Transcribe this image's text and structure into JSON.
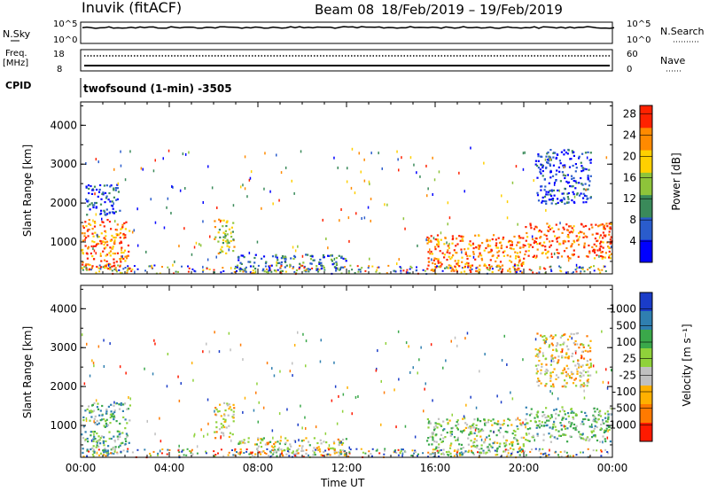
{
  "header": {
    "station": "Inuvik (fitACF)",
    "beam": "Beam 08",
    "date_range": "18/Feb/2019 – 19/Feb/2019"
  },
  "top_panels": {
    "nsky_label": "N.Sky",
    "nsky_tick_top": "10^5",
    "nsky_tick_bottom": "10^0",
    "nsearch_label": "N.Search",
    "nsearch_tick_top": "10^5",
    "nsearch_tick_bottom": "10^0",
    "freq_label": "Freq.",
    "freq_unit": "[MHz]",
    "freq_tick_top": "18",
    "freq_tick_bottom": "8",
    "nave_label": "Nave",
    "nave_tick_top": "60",
    "nave_tick_bottom": "0",
    "cpid_label": "CPID",
    "cpid_text": "twofsound (1-min) -3505"
  },
  "chart_data": [
    {
      "type": "heatmap",
      "name": "power",
      "ylabel": "Slant Range [km]",
      "yticks": [
        "1000",
        "2000",
        "3000",
        "4000"
      ],
      "ylim": [
        180,
        4600
      ],
      "xlim": [
        0,
        24
      ],
      "colorbar_label": "Power [dB]",
      "colorbar_ticks": [
        "4",
        "8",
        "12",
        "16",
        "20",
        "24",
        "28"
      ],
      "colorbar_colors": [
        "#0000ff",
        "#2a5ccc",
        "#3a8a5a",
        "#8ec43a",
        "#ffd000",
        "#ff8a00",
        "#ff2200"
      ],
      "regions": [
        {
          "t0": 0.0,
          "t1": 2.2,
          "r0": 300,
          "r1": 1600,
          "level": 0.8
        },
        {
          "t0": 0.2,
          "t1": 1.8,
          "r0": 1700,
          "r1": 2500,
          "level": 0.2
        },
        {
          "t0": 6.0,
          "t1": 6.9,
          "r0": 700,
          "r1": 1600,
          "level": 0.55
        },
        {
          "t0": 7.0,
          "t1": 12.0,
          "r0": 250,
          "r1": 700,
          "level": 0.3
        },
        {
          "t0": 15.6,
          "t1": 20.0,
          "r0": 250,
          "r1": 1200,
          "level": 0.8
        },
        {
          "t0": 20.0,
          "t1": 24.0,
          "r0": 600,
          "r1": 1500,
          "level": 0.85
        },
        {
          "t0": 20.5,
          "t1": 23.0,
          "r0": 2000,
          "r1": 3400,
          "level": 0.15
        }
      ]
    },
    {
      "type": "heatmap",
      "name": "velocity",
      "ylabel": "Slant Range [km]",
      "yticks": [
        "1000",
        "2000",
        "3000",
        "4000"
      ],
      "ylim": [
        180,
        4600
      ],
      "xlabel": "Time UT",
      "xticks": [
        "00:00",
        "04:00",
        "08:00",
        "12:00",
        "16:00",
        "20:00",
        "00:00"
      ],
      "xlim": [
        0,
        24
      ],
      "colorbar_label": "Velocity [m s⁻¹]",
      "colorbar_ticks": [
        "1000",
        "500",
        "100",
        "25",
        "-25",
        "-100",
        "-500",
        "-1000"
      ],
      "colorbar_colors": [
        "#1a3cc8",
        "#2f7fb0",
        "#3aa84a",
        "#8fd23a",
        "#c0c0c0",
        "#ffb000",
        "#ff7a00",
        "#ff1a00"
      ],
      "regions": [
        {
          "t0": 0.0,
          "t1": 2.2,
          "r0": 300,
          "r1": 1600,
          "level": 0.35
        },
        {
          "t0": 6.0,
          "t1": 6.9,
          "r0": 700,
          "r1": 1600,
          "level": 0.6
        },
        {
          "t0": 7.0,
          "t1": 12.0,
          "r0": 250,
          "r1": 700,
          "level": 0.55
        },
        {
          "t0": 15.6,
          "t1": 20.0,
          "r0": 250,
          "r1": 1200,
          "level": 0.45
        },
        {
          "t0": 20.0,
          "t1": 24.0,
          "r0": 600,
          "r1": 1500,
          "level": 0.4
        },
        {
          "t0": 20.5,
          "t1": 23.0,
          "r0": 2000,
          "r1": 3400,
          "level": 0.6
        }
      ]
    }
  ]
}
